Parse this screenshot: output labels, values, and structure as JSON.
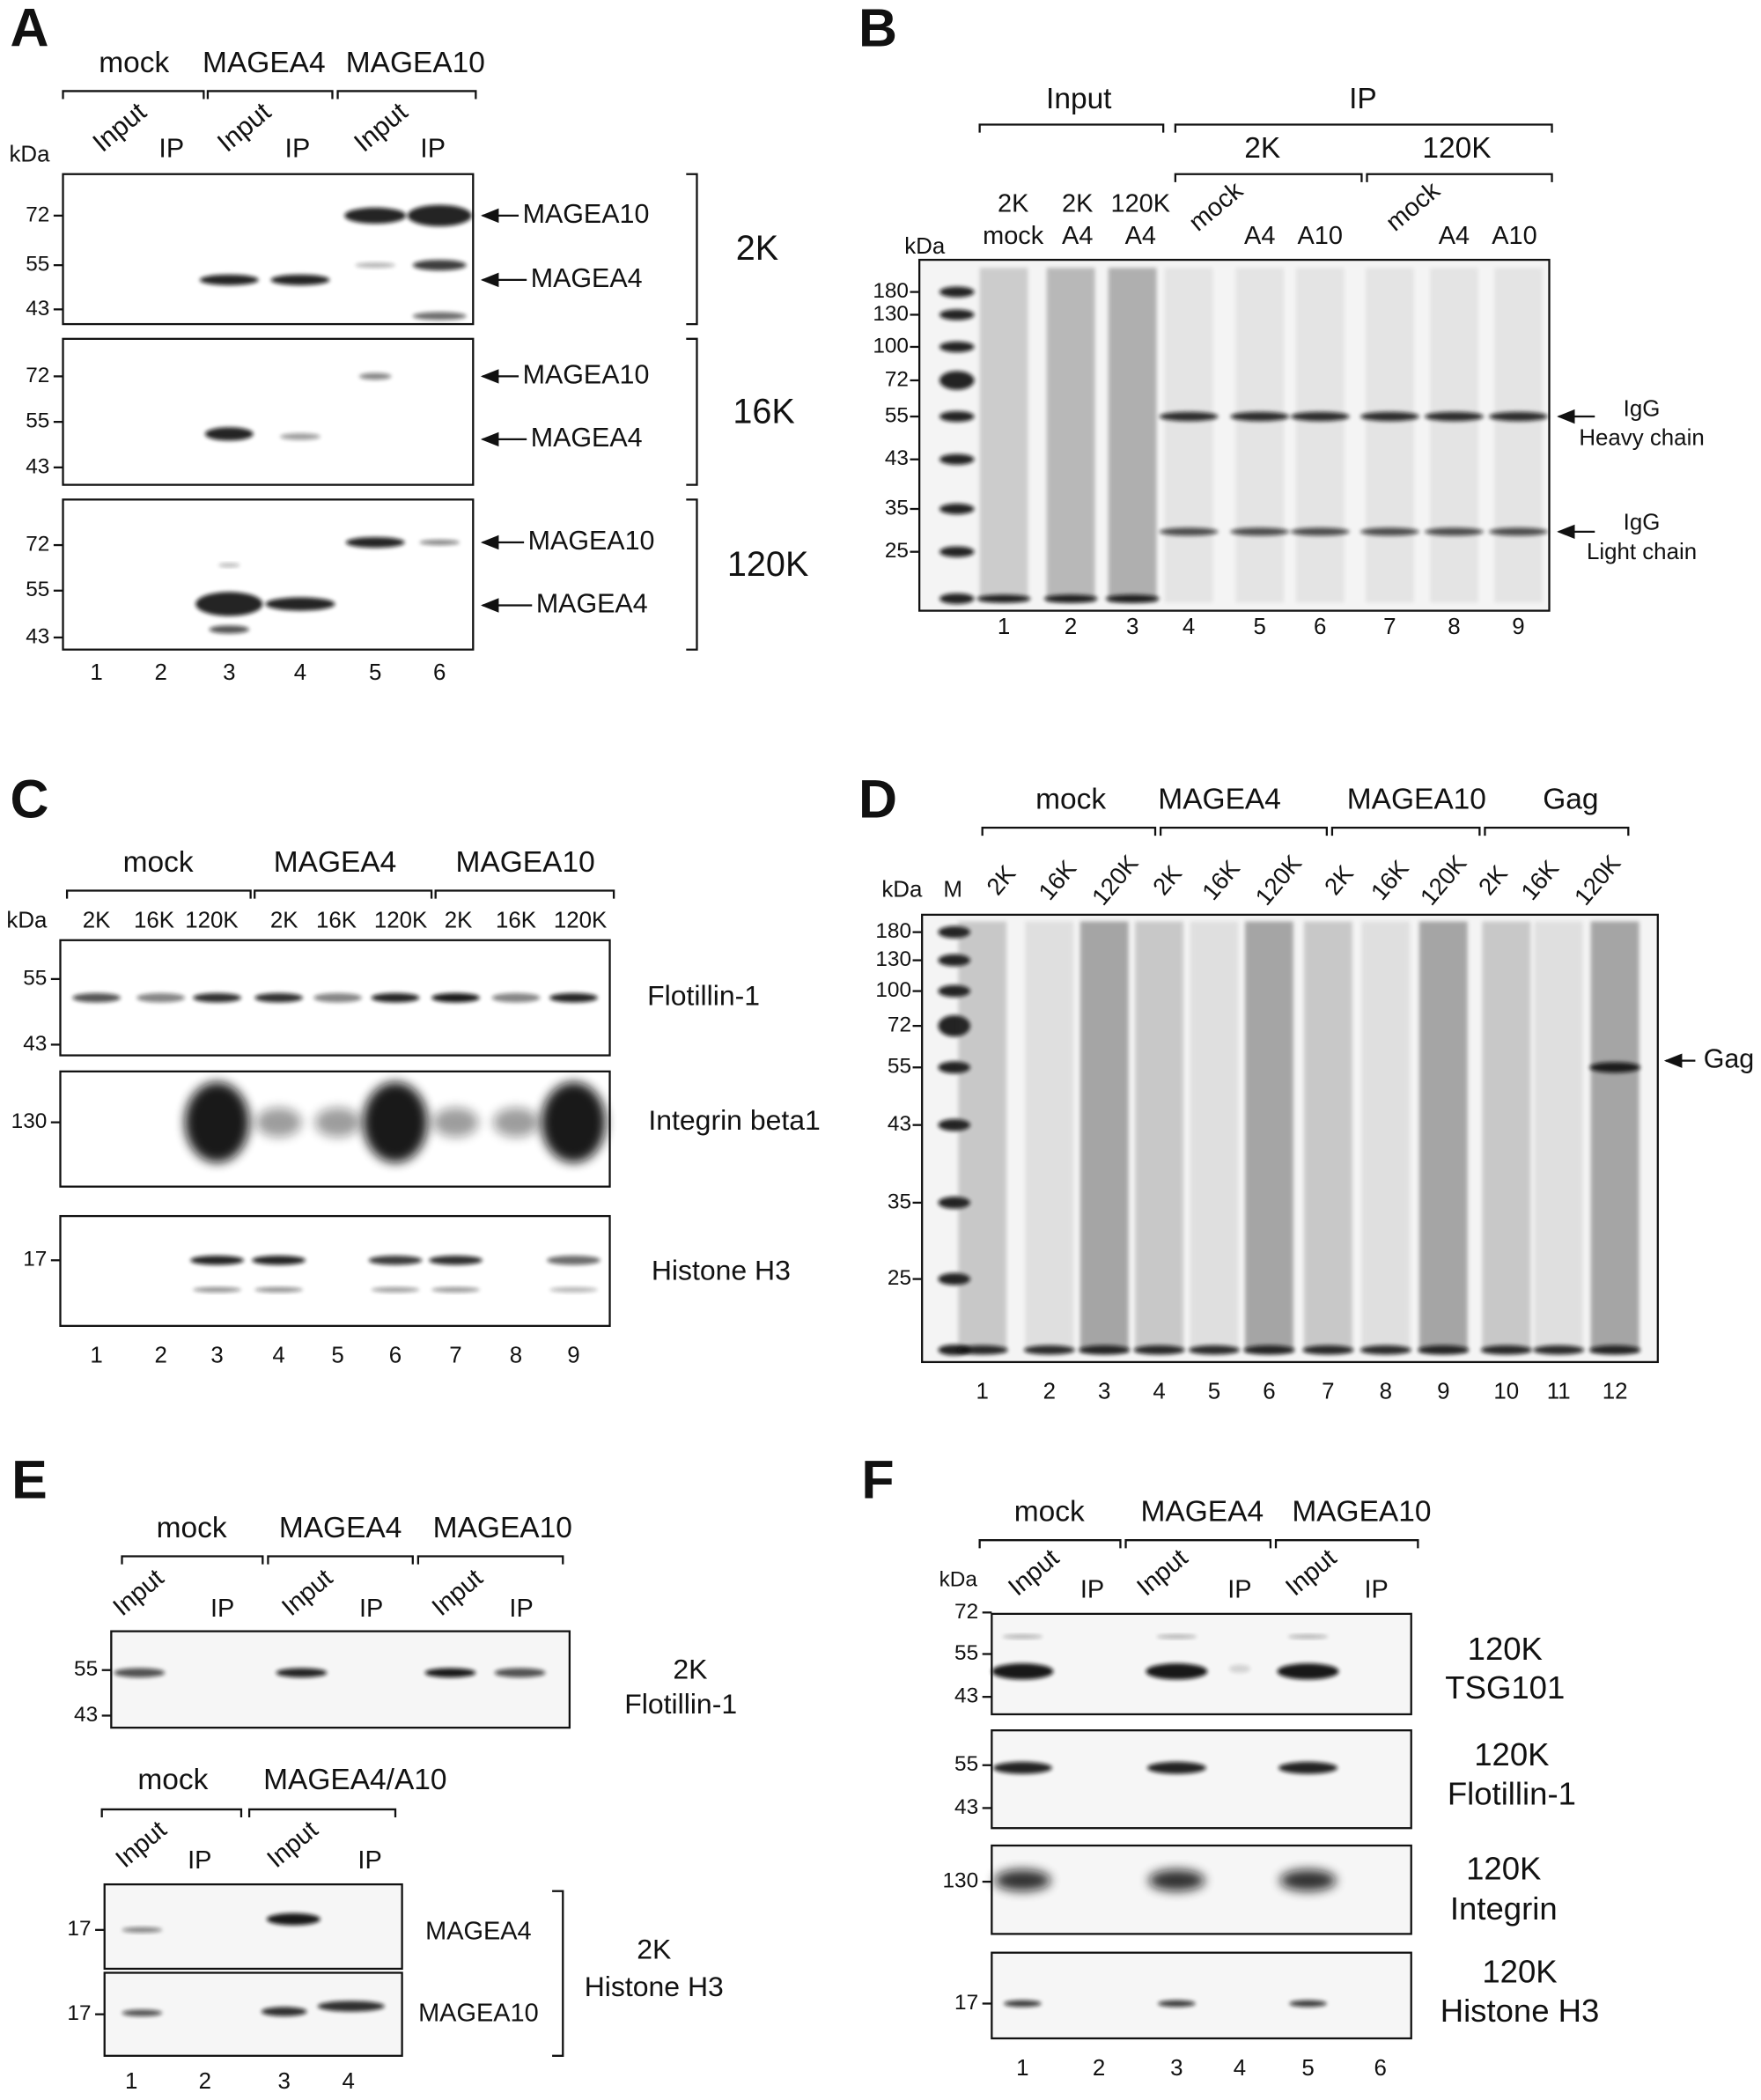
{
  "panel_a": {
    "letter": "A",
    "groups": [
      "mock",
      "MAGEA4",
      "MAGEA10"
    ],
    "lanes": [
      "Input",
      "IP",
      "Input",
      "IP",
      "Input",
      "IP"
    ],
    "kda_label": "kDa",
    "blots": [
      {
        "markers": [
          72,
          55,
          43
        ],
        "bands": [
          "MAGEA10",
          "MAGEA4"
        ],
        "fraction": "2K"
      },
      {
        "markers": [
          72,
          55,
          43
        ],
        "bands": [
          "MAGEA10",
          "MAGEA4"
        ],
        "fraction": "16K"
      },
      {
        "markers": [
          72,
          55,
          43
        ],
        "bands": [
          "MAGEA10",
          "MAGEA4"
        ],
        "fraction": "120K"
      }
    ],
    "lane_numbers": [
      1,
      2,
      3,
      4,
      5,
      6
    ]
  },
  "panel_b": {
    "letter": "B",
    "groups": [
      "Input",
      "IP"
    ],
    "subgroups": [
      "2K",
      "120K"
    ],
    "lane_labels": [
      [
        "2K",
        "mock"
      ],
      [
        "2K",
        "A4"
      ],
      [
        "120K",
        "A4"
      ],
      [
        "mock"
      ],
      [
        "A4"
      ],
      [
        "A10"
      ],
      [
        "mock"
      ],
      [
        "A4"
      ],
      [
        "A10"
      ]
    ],
    "kda_label": "kDa",
    "markers": [
      180,
      130,
      100,
      72,
      55,
      43,
      35,
      25
    ],
    "bands": [
      [
        "IgG",
        "Heavy chain"
      ],
      [
        "IgG",
        "Light chain"
      ]
    ],
    "lane_numbers": [
      1,
      2,
      3,
      4,
      5,
      6,
      7,
      8,
      9
    ]
  },
  "panel_c": {
    "letter": "C",
    "groups": [
      "mock",
      "MAGEA4",
      "MAGEA10"
    ],
    "lanes": [
      "2K",
      "16K",
      "120K",
      "2K",
      "16K",
      "120K",
      "2K",
      "16K",
      "120K"
    ],
    "kda_label": "kDa",
    "blots": [
      {
        "markers": [
          55,
          43
        ],
        "label": "Flotillin-1"
      },
      {
        "markers": [
          130
        ],
        "label": "Integrin beta1"
      },
      {
        "markers": [
          17
        ],
        "label": "Histone H3"
      }
    ],
    "lane_numbers": [
      1,
      2,
      3,
      4,
      5,
      6,
      7,
      8,
      9
    ]
  },
  "panel_d": {
    "letter": "D",
    "groups": [
      "mock",
      "MAGEA4",
      "MAGEA10",
      "Gag"
    ],
    "kda_label": "kDa",
    "marker_lane": "M",
    "lanes": [
      "2K",
      "16K",
      "120K",
      "2K",
      "16K",
      "120K",
      "2K",
      "16K",
      "120K",
      "2K",
      "16K",
      "120K"
    ],
    "markers": [
      180,
      130,
      100,
      72,
      55,
      43,
      35,
      25
    ],
    "band": "Gag",
    "lane_numbers": [
      1,
      2,
      3,
      4,
      5,
      6,
      7,
      8,
      9,
      10,
      11,
      12
    ]
  },
  "panel_e": {
    "letter": "E",
    "top": {
      "groups": [
        "mock",
        "MAGEA4",
        "MAGEA10"
      ],
      "lanes": [
        "Input",
        "IP",
        "Input",
        "IP",
        "Input",
        "IP"
      ],
      "markers": [
        55,
        43
      ],
      "fraction": "2K",
      "label": "Flotillin-1"
    },
    "bottom": {
      "groups": [
        "mock",
        "MAGEA4/A10"
      ],
      "lanes": [
        "Input",
        "IP",
        "Input",
        "IP"
      ],
      "blots": [
        {
          "markers": [
            17
          ],
          "label": "MAGEA4"
        },
        {
          "markers": [
            17
          ],
          "label": "MAGEA10"
        }
      ],
      "fraction": "2K",
      "label": "Histone H3"
    },
    "lane_numbers": [
      1,
      2,
      3,
      4
    ]
  },
  "panel_f": {
    "letter": "F",
    "groups": [
      "mock",
      "MAGEA4",
      "MAGEA10"
    ],
    "lanes": [
      "Input",
      "IP",
      "Input",
      "IP",
      "Input",
      "IP"
    ],
    "kda_label": "kDa",
    "blots": [
      {
        "markers": [
          72,
          55,
          43
        ],
        "fraction": "120K",
        "label": "TSG101"
      },
      {
        "markers": [
          55,
          43
        ],
        "fraction": "120K",
        "label": "Flotillin-1"
      },
      {
        "markers": [
          130
        ],
        "fraction": "120K",
        "label": "Integrin"
      },
      {
        "markers": [
          17
        ],
        "fraction": "120K",
        "label": "Histone H3"
      }
    ],
    "lane_numbers": [
      1,
      2,
      3,
      4,
      5,
      6
    ]
  }
}
